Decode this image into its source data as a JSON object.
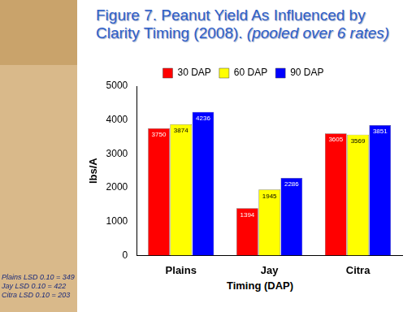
{
  "chart_data": {
    "type": "bar",
    "title": "Figure 7.  Peanut Yield As Influenced by Clarity Timing (2008).",
    "subtitle": "(pooled over 6 rates)",
    "x_label": "Timing (DAP)",
    "y_label": "lbs/A",
    "categories": [
      "Plains",
      "Jay",
      "Citra"
    ],
    "series": [
      {
        "name": "30 DAP",
        "color": "#ff0000",
        "values": [
          3750,
          1394,
          3605
        ]
      },
      {
        "name": "60 DAP",
        "color": "#ffff00",
        "values": [
          3874,
          1945,
          3569
        ]
      },
      {
        "name": "90 DAP",
        "color": "#0000ff",
        "values": [
          4236,
          2286,
          3851
        ]
      }
    ],
    "ylim": [
      0,
      5000
    ],
    "yticks": [
      0,
      1000,
      2000,
      3000,
      4000,
      5000
    ],
    "grid": false,
    "legend": "top",
    "data_labels": true,
    "annotations": [
      "Plains LSD 0.10 = 349",
      "Jay LSD 0.10 = 422",
      "Citra LSD 0.10 = 203"
    ]
  }
}
